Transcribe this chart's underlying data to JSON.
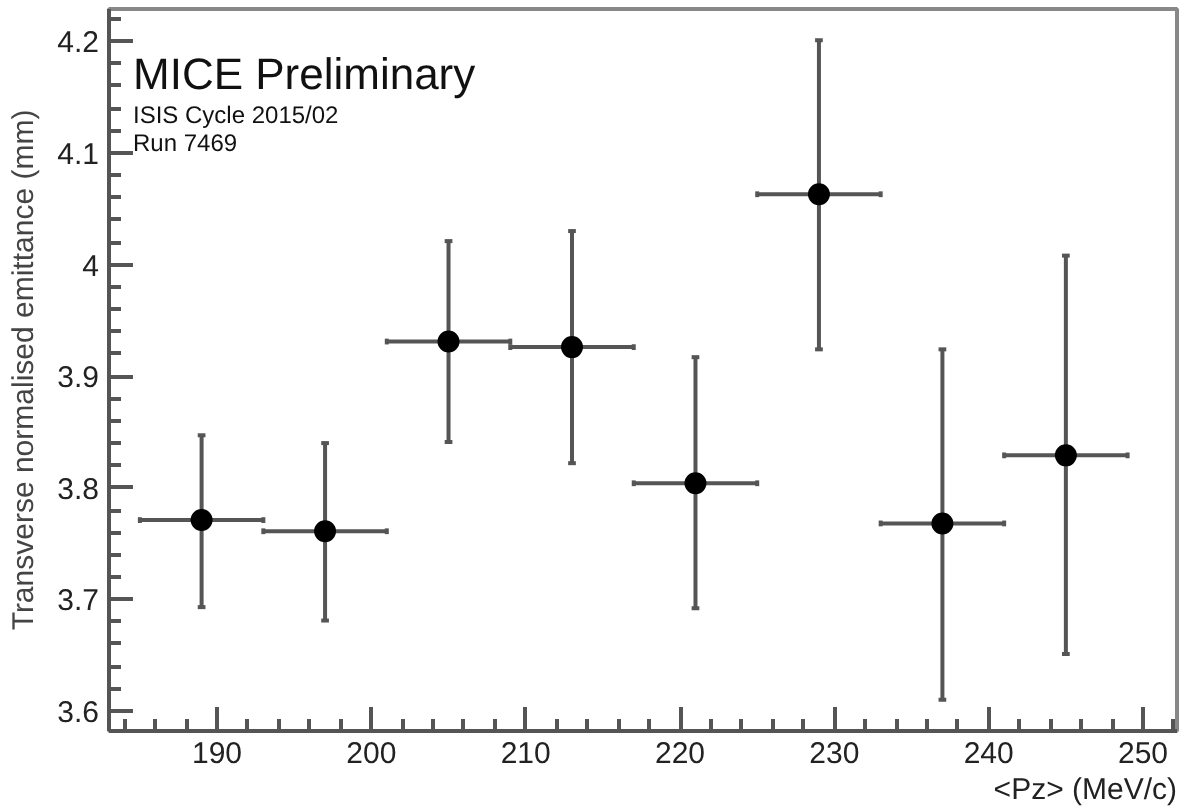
{
  "chart_data": {
    "type": "scatter",
    "xlabel": "<Pz> (MeV/c)",
    "ylabel": "Transverse normalised emittance (mm)",
    "annotations": [
      "MICE Preliminary",
      "ISIS Cycle 2015/02",
      "Run 7469"
    ],
    "x": [
      189,
      197,
      205,
      213,
      221,
      229,
      237,
      245
    ],
    "series": [
      {
        "color": "#000000",
        "values": [
          3.771,
          3.761,
          3.931,
          3.926,
          3.804,
          4.063,
          3.768,
          3.829
        ],
        "errors": [
          [
            3.693,
            3.847
          ],
          [
            3.681,
            3.84
          ],
          [
            3.841,
            4.021
          ],
          [
            3.822,
            4.03
          ],
          [
            3.692,
            3.917
          ],
          [
            3.924,
            4.201
          ],
          [
            3.61,
            3.924
          ],
          [
            3.651,
            4.008
          ]
        ],
        "xerrors": [
          4,
          4,
          4,
          4,
          4,
          4,
          4,
          4
        ]
      }
    ],
    "xlim": [
      183,
      252.2
    ],
    "ylim": [
      3.582,
      4.229
    ],
    "xticks": [
      190,
      200,
      210,
      220,
      230,
      240,
      250
    ],
    "yticks": [
      3.6,
      3.7,
      3.8,
      3.9,
      4,
      4.1,
      4.2
    ],
    "marker": "circle",
    "grid": false
  }
}
